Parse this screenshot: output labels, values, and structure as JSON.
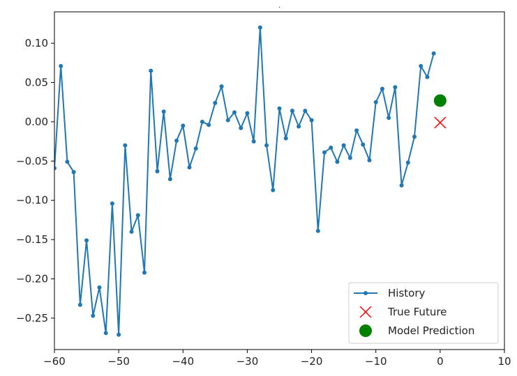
{
  "chart_data": {
    "type": "line",
    "title": ".",
    "xlabel": "",
    "ylabel": "",
    "xlim": [
      -60,
      10
    ],
    "ylim": [
      -0.29,
      0.14
    ],
    "x_ticks": [
      -60,
      -50,
      -40,
      -30,
      -20,
      -10,
      0,
      10
    ],
    "x_tick_labels": [
      "−60",
      "−50",
      "−40",
      "−30",
      "−20",
      "−10",
      "0",
      "10"
    ],
    "y_ticks": [
      -0.25,
      -0.2,
      -0.15,
      -0.1,
      -0.05,
      0.0,
      0.05,
      0.1
    ],
    "y_tick_labels": [
      "−0.25",
      "−0.20",
      "−0.15",
      "−0.10",
      "−0.05",
      "0.00",
      "0.05",
      "0.10"
    ],
    "grid": false,
    "legend_position": "lower-right",
    "series": [
      {
        "name": "History",
        "kind": "line-dots",
        "color": "#1f77b4",
        "x": [
          -60,
          -59,
          -58,
          -57,
          -56,
          -55,
          -54,
          -53,
          -52,
          -51,
          -50,
          -49,
          -48,
          -47,
          -46,
          -45,
          -44,
          -43,
          -42,
          -41,
          -40,
          -39,
          -38,
          -37,
          -36,
          -35,
          -34,
          -33,
          -32,
          -31,
          -30,
          -29,
          -28,
          -27,
          -26,
          -25,
          -24,
          -23,
          -22,
          -21,
          -20,
          -19,
          -18,
          -17,
          -16,
          -15,
          -14,
          -13,
          -12,
          -11,
          -10,
          -9,
          -8,
          -7,
          -6,
          -5,
          -4,
          -3,
          -2,
          -1
        ],
        "y": [
          -0.059,
          0.071,
          -0.051,
          -0.064,
          -0.233,
          -0.151,
          -0.247,
          -0.211,
          -0.269,
          -0.104,
          -0.271,
          -0.03,
          -0.14,
          -0.119,
          -0.192,
          0.065,
          -0.063,
          0.013,
          -0.073,
          -0.024,
          -0.005,
          -0.058,
          -0.034,
          0.0,
          -0.004,
          0.024,
          0.045,
          0.002,
          0.012,
          -0.008,
          0.011,
          -0.025,
          0.12,
          -0.03,
          -0.087,
          0.017,
          -0.021,
          0.014,
          -0.006,
          0.014,
          0.002,
          -0.139,
          -0.039,
          -0.033,
          -0.051,
          -0.03,
          -0.046,
          -0.011,
          -0.029,
          -0.049,
          0.025,
          0.042,
          0.005,
          0.044,
          -0.081,
          -0.052,
          -0.019,
          0.071,
          0.057,
          0.087
        ]
      },
      {
        "name": "True Future",
        "kind": "x-marker",
        "color": "#ff0000",
        "x": [
          0
        ],
        "y": [
          -0.001
        ]
      },
      {
        "name": "Model Prediction",
        "kind": "circle-marker",
        "color": "#008000",
        "x": [
          0
        ],
        "y": [
          0.027
        ]
      }
    ]
  }
}
